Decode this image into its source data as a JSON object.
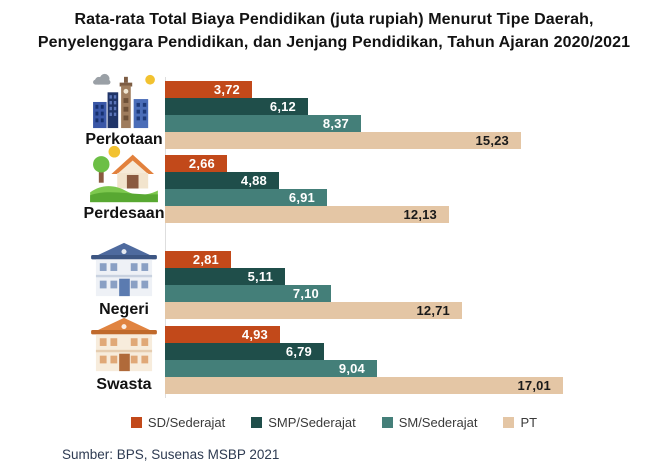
{
  "title": {
    "line1": "Rata-rata Total Biaya Pendidikan (juta rupiah) Menurut Tipe Daerah,",
    "line2": "Penyelenggara Pendidikan, dan Jenjang Pendidikan, Tahun Ajaran 2020/2021"
  },
  "chart_data": {
    "type": "bar",
    "orientation": "horizontal",
    "title": "Rata-rata Total Biaya Pendidikan (juta rupiah) Menurut Tipe Daerah, Penyelenggara Pendidikan, dan Jenjang Pendidikan, Tahun Ajaran 2020/2021",
    "unit": "juta rupiah",
    "categories": [
      "Perkotaan",
      "Perdesaan",
      "Negeri",
      "Swasta"
    ],
    "category_icons": [
      "city-icon",
      "village-icon",
      "public-school-building-icon",
      "private-school-building-icon"
    ],
    "series": [
      {
        "name": "SD/Sederajat",
        "short": "sd",
        "color": "#c2491a",
        "label_color": "#ffffff",
        "values": [
          3.72,
          2.66,
          2.81,
          4.93
        ],
        "labels": [
          "3,72",
          "2,66",
          "2,81",
          "4,93"
        ]
      },
      {
        "name": "SMP/Sederajat",
        "short": "smp",
        "color": "#1f4e4a",
        "label_color": "#ffffff",
        "values": [
          6.12,
          4.88,
          5.11,
          6.79
        ],
        "labels": [
          "6,12",
          "4,88",
          "5,11",
          "6,79"
        ]
      },
      {
        "name": "SM/Sederajat",
        "short": "sm",
        "color": "#447f79",
        "label_color": "#ffffff",
        "values": [
          8.37,
          6.91,
          7.1,
          9.04
        ],
        "labels": [
          "8,37",
          "6,91",
          "7,10",
          "9,04"
        ]
      },
      {
        "name": "PT",
        "short": "pt",
        "color": "#e4c6a5",
        "label_color": "#1a1a1a",
        "values": [
          15.23,
          12.13,
          12.71,
          17.01
        ],
        "labels": [
          "15,23",
          "12,13",
          "12,71",
          "17,01"
        ]
      }
    ],
    "xlim": [
      0,
      18
    ],
    "grid": false,
    "value_labels": "inside-end",
    "legend_position": "bottom"
  },
  "legend": {
    "items": [
      "SD/Sederajat",
      "SMP/Sederajat",
      "SM/Sederajat",
      "PT"
    ]
  },
  "source": "Sumber: BPS, Susenas MSBP 2021"
}
